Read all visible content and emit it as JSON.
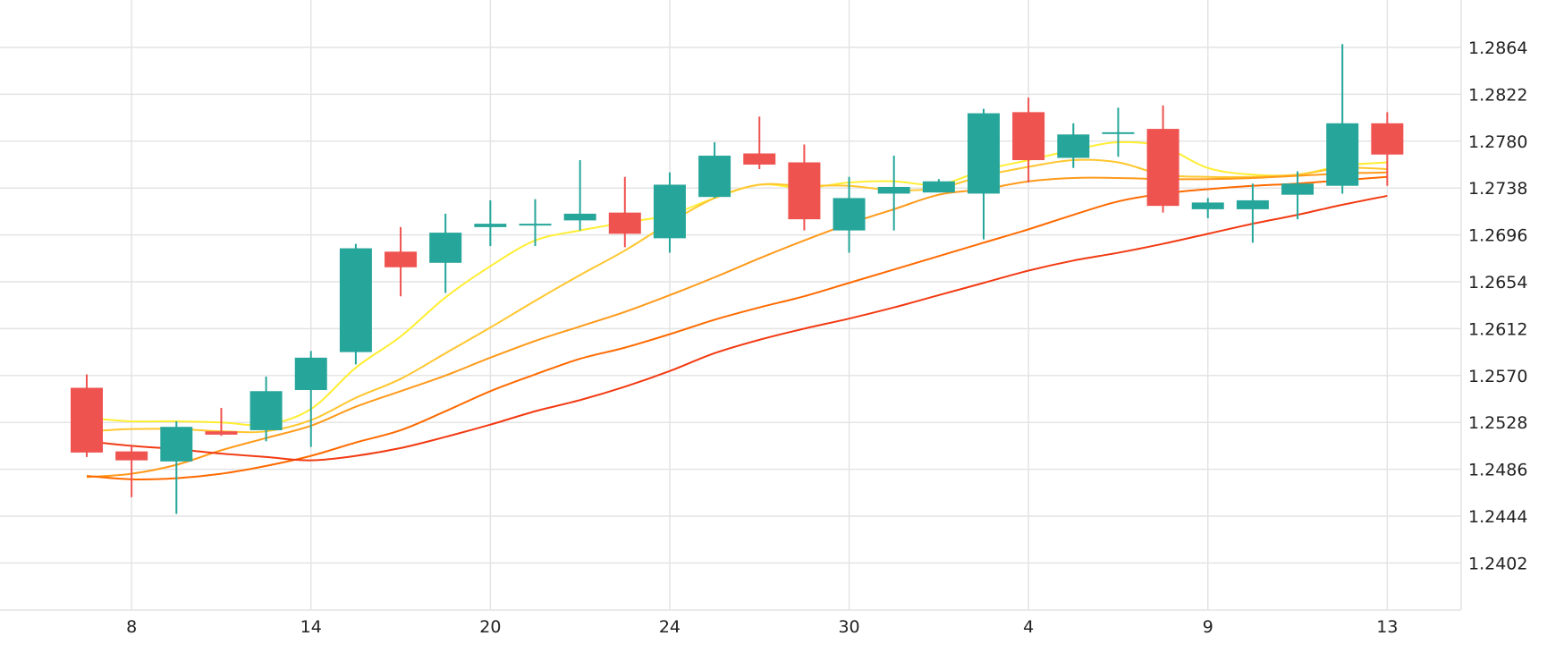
{
  "chart_data": {
    "type": "candlestick",
    "title": "",
    "xlabel": "",
    "ylabel": "",
    "ylim": [
      1.2352,
      1.2922
    ],
    "grid": true,
    "legend": "none",
    "colors": {
      "up": "#26a69a",
      "down": "#ef5350",
      "ma_yellow": "#ffee33",
      "ma_gold": "#ffc62e",
      "ma_orange": "#ff9a1a",
      "ma_darkorange": "#ff6a00",
      "ma_red": "#f23a12",
      "grid": "#e4e4e4",
      "text": "#222222"
    },
    "y_ticks": [
      "1.2864",
      "1.2822",
      "1.2780",
      "1.2738",
      "1.2696",
      "1.2654",
      "1.2612",
      "1.2570",
      "1.2528",
      "1.2486",
      "1.2444",
      "1.2402"
    ],
    "x_ticks": [
      {
        "label": "8",
        "index": 1
      },
      {
        "label": "14",
        "index": 5
      },
      {
        "label": "20",
        "index": 9
      },
      {
        "label": "24",
        "index": 13
      },
      {
        "label": "30",
        "index": 17
      },
      {
        "label": "4",
        "index": 21
      },
      {
        "label": "9",
        "index": 25
      },
      {
        "label": "13",
        "index": 29
      }
    ],
    "candles": [
      {
        "o": 1.2559,
        "h": 1.2571,
        "l": 1.2497,
        "c": 1.2501
      },
      {
        "o": 1.2502,
        "h": 1.2508,
        "l": 1.2461,
        "c": 1.2494
      },
      {
        "o": 1.2493,
        "h": 1.2529,
        "l": 1.2446,
        "c": 1.2524
      },
      {
        "o": 1.252,
        "h": 1.2541,
        "l": 1.2516,
        "c": 1.2517
      },
      {
        "o": 1.2521,
        "h": 1.2569,
        "l": 1.2511,
        "c": 1.2556
      },
      {
        "o": 1.2557,
        "h": 1.2592,
        "l": 1.2506,
        "c": 1.2586
      },
      {
        "o": 1.2591,
        "h": 1.2688,
        "l": 1.258,
        "c": 1.2684
      },
      {
        "o": 1.2681,
        "h": 1.2703,
        "l": 1.2641,
        "c": 1.2667
      },
      {
        "o": 1.2671,
        "h": 1.2715,
        "l": 1.2644,
        "c": 1.2698
      },
      {
        "o": 1.2703,
        "h": 1.2727,
        "l": 1.2686,
        "c": 1.2706
      },
      {
        "o": 1.2706,
        "h": 1.2728,
        "l": 1.2686,
        "c": 1.2706
      },
      {
        "o": 1.2709,
        "h": 1.2763,
        "l": 1.27,
        "c": 1.2715
      },
      {
        "o": 1.2716,
        "h": 1.2748,
        "l": 1.2685,
        "c": 1.2697
      },
      {
        "o": 1.2693,
        "h": 1.2752,
        "l": 1.268,
        "c": 1.2741
      },
      {
        "o": 1.273,
        "h": 1.2779,
        "l": 1.2729,
        "c": 1.2767
      },
      {
        "o": 1.2769,
        "h": 1.2802,
        "l": 1.2755,
        "c": 1.2759
      },
      {
        "o": 1.2761,
        "h": 1.2777,
        "l": 1.27,
        "c": 1.271
      },
      {
        "o": 1.27,
        "h": 1.2748,
        "l": 1.268,
        "c": 1.2729
      },
      {
        "o": 1.2733,
        "h": 1.2767,
        "l": 1.27,
        "c": 1.2739
      },
      {
        "o": 1.2734,
        "h": 1.2746,
        "l": 1.2734,
        "c": 1.2744
      },
      {
        "o": 1.2733,
        "h": 1.2809,
        "l": 1.2692,
        "c": 1.2805
      },
      {
        "o": 1.2806,
        "h": 1.2819,
        "l": 1.2743,
        "c": 1.2763
      },
      {
        "o": 1.2765,
        "h": 1.2796,
        "l": 1.2756,
        "c": 1.2786
      },
      {
        "o": 1.2788,
        "h": 1.281,
        "l": 1.2766,
        "c": 1.2788
      },
      {
        "o": 1.2791,
        "h": 1.2812,
        "l": 1.2716,
        "c": 1.2722
      },
      {
        "o": 1.2719,
        "h": 1.2729,
        "l": 1.2711,
        "c": 1.2725
      },
      {
        "o": 1.2719,
        "h": 1.2742,
        "l": 1.2689,
        "c": 1.2727
      },
      {
        "o": 1.2732,
        "h": 1.2753,
        "l": 1.271,
        "c": 1.2742
      },
      {
        "o": 1.274,
        "h": 1.2867,
        "l": 1.2733,
        "c": 1.2796
      },
      {
        "o": 1.2796,
        "h": 1.2806,
        "l": 1.274,
        "c": 1.2768
      }
    ],
    "series": [
      {
        "color": "#ffee33",
        "values": [
          1.2532,
          1.2529,
          1.2529,
          1.2528,
          1.2526,
          1.254,
          1.2577,
          1.2605,
          1.264,
          1.2668,
          1.2691,
          1.27,
          1.2707,
          1.2714,
          1.2729,
          1.2741,
          1.2738,
          1.2743,
          1.2744,
          1.2741,
          1.2754,
          1.2763,
          1.2772,
          1.2779,
          1.2775,
          1.2756,
          1.275,
          1.275,
          1.2758,
          1.2761
        ]
      },
      {
        "color": "#ffc62e",
        "values": [
          1.252,
          1.2522,
          1.2522,
          1.252,
          1.252,
          1.253,
          1.255,
          1.2567,
          1.259,
          1.2613,
          1.2637,
          1.266,
          1.2682,
          1.2707,
          1.2729,
          1.2741,
          1.274,
          1.274,
          1.2736,
          1.2738,
          1.2749,
          1.2757,
          1.2763,
          1.2761,
          1.275,
          1.2748,
          1.2748,
          1.275,
          1.2756,
          1.2755
        ]
      },
      {
        "color": "#ff9a1a",
        "values": [
          1.2479,
          1.2482,
          1.249,
          1.2503,
          1.2514,
          1.2525,
          1.2542,
          1.2556,
          1.257,
          1.2586,
          1.2601,
          1.2614,
          1.2627,
          1.2642,
          1.2658,
          1.2675,
          1.2691,
          1.2706,
          1.2719,
          1.2732,
          1.2737,
          1.2744,
          1.2747,
          1.2747,
          1.2746,
          1.2746,
          1.2747,
          1.2749,
          1.2751,
          1.2752
        ]
      },
      {
        "color": "#ff6a00",
        "values": [
          1.248,
          1.2477,
          1.2478,
          1.2482,
          1.2489,
          1.2498,
          1.251,
          1.2521,
          1.2538,
          1.2556,
          1.2571,
          1.2585,
          1.2595,
          1.2607,
          1.262,
          1.2631,
          1.2641,
          1.2653,
          1.2665,
          1.2677,
          1.2689,
          1.2701,
          1.2714,
          1.2726,
          1.2733,
          1.2737,
          1.274,
          1.2742,
          1.2745,
          1.2748
        ]
      },
      {
        "color": "#f23a12",
        "values": [
          1.2511,
          1.2507,
          1.2504,
          1.25,
          1.2497,
          1.2494,
          1.2498,
          1.2505,
          1.2515,
          1.2526,
          1.2538,
          1.2548,
          1.256,
          1.2574,
          1.259,
          1.2602,
          1.2612,
          1.2621,
          1.2631,
          1.2642,
          1.2653,
          1.2664,
          1.2673,
          1.268,
          1.2688,
          1.2697,
          1.2706,
          1.2714,
          1.2723,
          1.2731
        ]
      }
    ]
  }
}
